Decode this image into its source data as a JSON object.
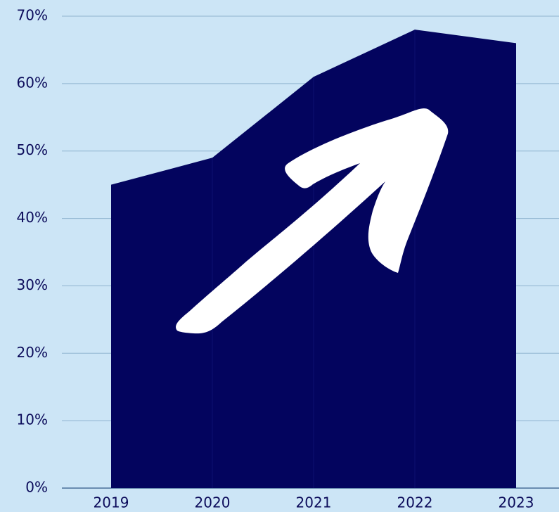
{
  "chart_data": {
    "type": "area",
    "categories": [
      "2019",
      "2020",
      "2021",
      "2022",
      "2023"
    ],
    "values": [
      45,
      49,
      61,
      68,
      66
    ],
    "color": "#03045e",
    "ylim": [
      0,
      70
    ],
    "yticks": [
      {
        "value": 0,
        "label": "0%"
      },
      {
        "value": 10,
        "label": "10%"
      },
      {
        "value": 20,
        "label": "20%"
      },
      {
        "value": 30,
        "label": "30%"
      },
      {
        "value": 40,
        "label": "40%"
      },
      {
        "value": 50,
        "label": "50%"
      },
      {
        "value": 60,
        "label": "60%"
      },
      {
        "value": 70,
        "label": "70%"
      }
    ],
    "grid": true
  }
}
